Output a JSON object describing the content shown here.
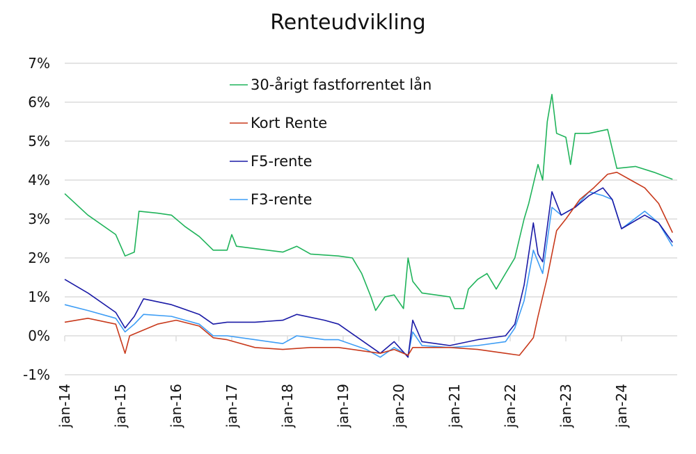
{
  "chart_data": {
    "type": "line",
    "title": "Renteudvikling",
    "xlabel": "",
    "ylabel": "",
    "ylim": [
      -1,
      7
    ],
    "xlim": [
      "2014-01",
      "2024-12"
    ],
    "y_ticks": [
      "-1%",
      "0%",
      "1%",
      "2%",
      "3%",
      "4%",
      "5%",
      "6%",
      "7%"
    ],
    "x_ticks": [
      "jan-14",
      "jan-15",
      "jan-16",
      "jan-17",
      "jan-18",
      "jan-19",
      "jan-20",
      "jan-21",
      "jan-22",
      "jan-23",
      "jan-24"
    ],
    "grid": "horizontal",
    "legend_placement": "top-center",
    "series": [
      {
        "name": "30-årigt fastforrentet lån",
        "color": "#1fb35a",
        "points": [
          [
            "2014-01",
            3.65
          ],
          [
            "2014-06",
            3.1
          ],
          [
            "2014-12",
            2.6
          ],
          [
            "2015-02",
            2.05
          ],
          [
            "2015-04",
            2.15
          ],
          [
            "2015-05",
            3.2
          ],
          [
            "2015-09",
            3.15
          ],
          [
            "2015-12",
            3.1
          ],
          [
            "2016-03",
            2.8
          ],
          [
            "2016-06",
            2.55
          ],
          [
            "2016-09",
            2.2
          ],
          [
            "2016-12",
            2.2
          ],
          [
            "2017-01",
            2.6
          ],
          [
            "2017-02",
            2.3
          ],
          [
            "2017-12",
            2.15
          ],
          [
            "2018-03",
            2.3
          ],
          [
            "2018-06",
            2.1
          ],
          [
            "2018-12",
            2.05
          ],
          [
            "2019-03",
            2.0
          ],
          [
            "2019-05",
            1.6
          ],
          [
            "2019-07",
            1.0
          ],
          [
            "2019-08",
            0.65
          ],
          [
            "2019-10",
            1.0
          ],
          [
            "2019-12",
            1.05
          ],
          [
            "2020-02",
            0.7
          ],
          [
            "2020-03",
            2.0
          ],
          [
            "2020-04",
            1.4
          ],
          [
            "2020-06",
            1.1
          ],
          [
            "2020-12",
            1.0
          ],
          [
            "2021-01",
            0.7
          ],
          [
            "2021-03",
            0.7
          ],
          [
            "2021-04",
            1.2
          ],
          [
            "2021-06",
            1.45
          ],
          [
            "2021-08",
            1.6
          ],
          [
            "2021-10",
            1.2
          ],
          [
            "2021-12",
            1.6
          ],
          [
            "2022-02",
            2.0
          ],
          [
            "2022-04",
            3.0
          ],
          [
            "2022-05",
            3.4
          ],
          [
            "2022-07",
            4.4
          ],
          [
            "2022-08",
            4.0
          ],
          [
            "2022-09",
            5.5
          ],
          [
            "2022-10",
            6.2
          ],
          [
            "2022-11",
            5.2
          ],
          [
            "2023-01",
            5.1
          ],
          [
            "2023-02",
            4.4
          ],
          [
            "2023-03",
            5.2
          ],
          [
            "2023-06",
            5.2
          ],
          [
            "2023-10",
            5.3
          ],
          [
            "2023-12",
            4.3
          ],
          [
            "2024-04",
            4.35
          ],
          [
            "2024-08",
            4.2
          ],
          [
            "2024-12",
            4.02
          ]
        ]
      },
      {
        "name": "Kort Rente",
        "color": "#c8391b",
        "points": [
          [
            "2014-01",
            0.35
          ],
          [
            "2014-06",
            0.45
          ],
          [
            "2014-12",
            0.3
          ],
          [
            "2015-02",
            -0.45
          ],
          [
            "2015-03",
            0.0
          ],
          [
            "2015-06",
            0.15
          ],
          [
            "2015-09",
            0.3
          ],
          [
            "2016-01",
            0.4
          ],
          [
            "2016-06",
            0.25
          ],
          [
            "2016-09",
            -0.05
          ],
          [
            "2016-12",
            -0.1
          ],
          [
            "2017-06",
            -0.3
          ],
          [
            "2017-12",
            -0.35
          ],
          [
            "2018-06",
            -0.3
          ],
          [
            "2018-12",
            -0.3
          ],
          [
            "2019-06",
            -0.4
          ],
          [
            "2019-09",
            -0.45
          ],
          [
            "2019-12",
            -0.35
          ],
          [
            "2020-03",
            -0.5
          ],
          [
            "2020-04",
            -0.3
          ],
          [
            "2020-12",
            -0.3
          ],
          [
            "2021-06",
            -0.35
          ],
          [
            "2021-12",
            -0.45
          ],
          [
            "2022-03",
            -0.5
          ],
          [
            "2022-05",
            -0.2
          ],
          [
            "2022-06",
            -0.05
          ],
          [
            "2022-07",
            0.5
          ],
          [
            "2022-09",
            1.5
          ],
          [
            "2022-11",
            2.7
          ],
          [
            "2023-01",
            3.0
          ],
          [
            "2023-04",
            3.5
          ],
          [
            "2023-07",
            3.8
          ],
          [
            "2023-10",
            4.15
          ],
          [
            "2023-12",
            4.2
          ],
          [
            "2024-03",
            4.0
          ],
          [
            "2024-06",
            3.8
          ],
          [
            "2024-09",
            3.4
          ],
          [
            "2024-12",
            2.65
          ]
        ]
      },
      {
        "name": "F5-rente",
        "color": "#1a1aa6",
        "points": [
          [
            "2014-01",
            1.45
          ],
          [
            "2014-06",
            1.1
          ],
          [
            "2014-12",
            0.6
          ],
          [
            "2015-02",
            0.2
          ],
          [
            "2015-04",
            0.5
          ],
          [
            "2015-06",
            0.95
          ],
          [
            "2015-12",
            0.8
          ],
          [
            "2016-06",
            0.55
          ],
          [
            "2016-09",
            0.3
          ],
          [
            "2016-12",
            0.35
          ],
          [
            "2017-06",
            0.35
          ],
          [
            "2017-12",
            0.4
          ],
          [
            "2018-03",
            0.55
          ],
          [
            "2018-09",
            0.4
          ],
          [
            "2018-12",
            0.3
          ],
          [
            "2019-06",
            -0.2
          ],
          [
            "2019-09",
            -0.45
          ],
          [
            "2019-12",
            -0.15
          ],
          [
            "2020-03",
            -0.55
          ],
          [
            "2020-04",
            0.4
          ],
          [
            "2020-06",
            -0.15
          ],
          [
            "2020-12",
            -0.25
          ],
          [
            "2021-06",
            -0.1
          ],
          [
            "2021-12",
            0.0
          ],
          [
            "2022-02",
            0.3
          ],
          [
            "2022-04",
            1.3
          ],
          [
            "2022-06",
            2.9
          ],
          [
            "2022-07",
            2.1
          ],
          [
            "2022-08",
            1.9
          ],
          [
            "2022-10",
            3.7
          ],
          [
            "2022-12",
            3.1
          ],
          [
            "2023-03",
            3.3
          ],
          [
            "2023-06",
            3.6
          ],
          [
            "2023-09",
            3.8
          ],
          [
            "2023-11",
            3.5
          ],
          [
            "2024-01",
            2.75
          ],
          [
            "2024-06",
            3.1
          ],
          [
            "2024-09",
            2.9
          ],
          [
            "2024-12",
            2.4
          ]
        ]
      },
      {
        "name": "F3-rente",
        "color": "#3d9df5",
        "points": [
          [
            "2014-01",
            0.8
          ],
          [
            "2014-06",
            0.65
          ],
          [
            "2014-12",
            0.45
          ],
          [
            "2015-02",
            0.1
          ],
          [
            "2015-04",
            0.3
          ],
          [
            "2015-06",
            0.55
          ],
          [
            "2015-12",
            0.5
          ],
          [
            "2016-06",
            0.3
          ],
          [
            "2016-09",
            0.0
          ],
          [
            "2016-12",
            0.0
          ],
          [
            "2017-06",
            -0.1
          ],
          [
            "2017-12",
            -0.2
          ],
          [
            "2018-03",
            0.0
          ],
          [
            "2018-09",
            -0.1
          ],
          [
            "2018-12",
            -0.1
          ],
          [
            "2019-06",
            -0.35
          ],
          [
            "2019-09",
            -0.55
          ],
          [
            "2019-12",
            -0.3
          ],
          [
            "2020-03",
            -0.5
          ],
          [
            "2020-04",
            0.1
          ],
          [
            "2020-06",
            -0.25
          ],
          [
            "2020-12",
            -0.3
          ],
          [
            "2021-06",
            -0.25
          ],
          [
            "2021-12",
            -0.15
          ],
          [
            "2022-02",
            0.2
          ],
          [
            "2022-04",
            0.9
          ],
          [
            "2022-06",
            2.2
          ],
          [
            "2022-08",
            1.6
          ],
          [
            "2022-10",
            3.3
          ],
          [
            "2022-12",
            3.1
          ],
          [
            "2023-03",
            3.3
          ],
          [
            "2023-06",
            3.7
          ],
          [
            "2023-09",
            3.6
          ],
          [
            "2023-11",
            3.5
          ],
          [
            "2024-01",
            2.75
          ],
          [
            "2024-06",
            3.2
          ],
          [
            "2024-09",
            2.9
          ],
          [
            "2024-12",
            2.3
          ]
        ]
      }
    ]
  }
}
